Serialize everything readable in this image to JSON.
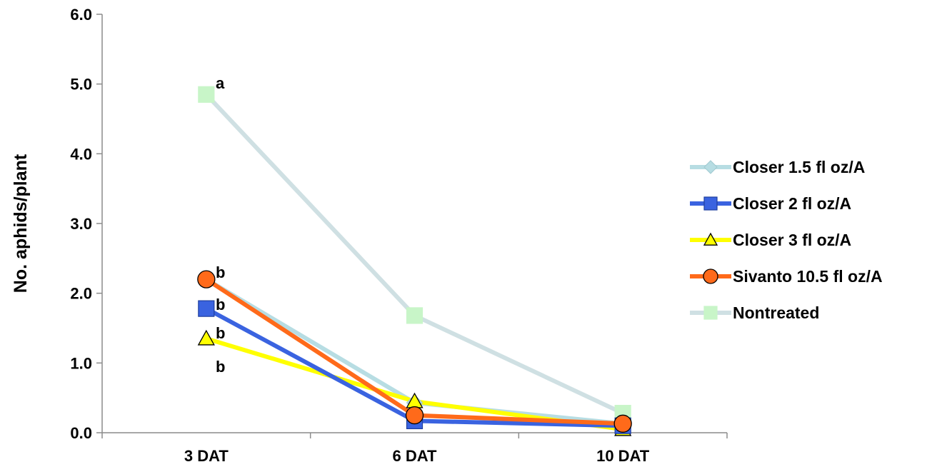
{
  "chart_data": {
    "type": "line",
    "categories": [
      "3 DAT",
      "6 DAT",
      "10 DAT"
    ],
    "ylabel": "No. aphids/plant",
    "xlabel": "",
    "ylim": [
      0,
      6
    ],
    "yticks": [
      "0.0",
      "1.0",
      "2.0",
      "3.0",
      "4.0",
      "5.0",
      "6.0"
    ],
    "grid": false,
    "legend_position": "right",
    "series": [
      {
        "name": "Closer 1.5 fl oz/A",
        "values": [
          2.2,
          0.43,
          0.13
        ],
        "line_color": "#b7dde3",
        "marker": "diamond",
        "marker_fill": "#b7dde3",
        "marker_stroke": "#9fc9d0"
      },
      {
        "name": "Closer 2 fl oz/A",
        "values": [
          1.78,
          0.17,
          0.1
        ],
        "line_color": "#3a63e0",
        "marker": "square",
        "marker_fill": "#3a63e0",
        "marker_stroke": "#1f3f9e"
      },
      {
        "name": "Closer 3 fl oz/A",
        "values": [
          1.35,
          0.45,
          0.05
        ],
        "line_color": "#ffff00",
        "marker": "triangle",
        "marker_fill": "#ffff00",
        "marker_stroke": "#000000"
      },
      {
        "name": "Sivanto 10.5 fl oz/A",
        "values": [
          2.2,
          0.25,
          0.13
        ],
        "line_color": "#ff6a1a",
        "marker": "circle",
        "marker_fill": "#ff6a1a",
        "marker_stroke": "#000000"
      },
      {
        "name": "Nontreated",
        "values": [
          4.85,
          1.68,
          0.28
        ],
        "line_color": "#cfe0e3",
        "marker": "square",
        "marker_fill": "#c8f5c8",
        "marker_stroke": "#c8f5c8"
      }
    ],
    "annotations": [
      "a",
      "b",
      "b",
      "b",
      "b"
    ]
  }
}
